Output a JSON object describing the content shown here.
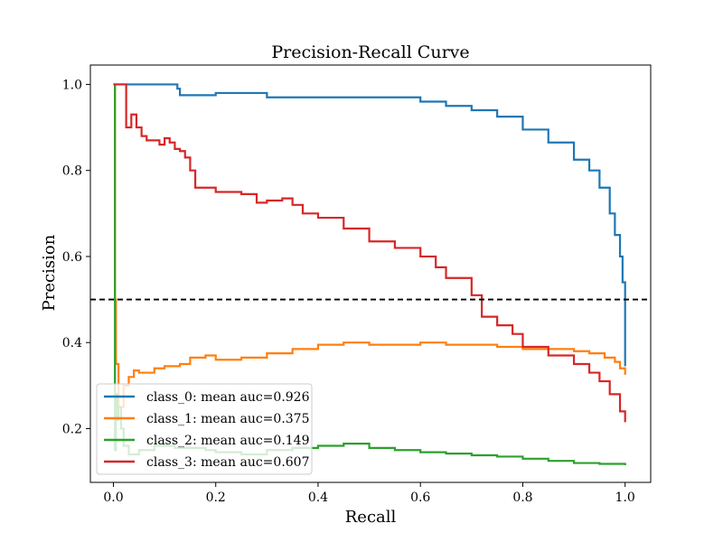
{
  "chart_data": {
    "type": "line",
    "title": "Precision-Recall Curve",
    "xlabel": "Recall",
    "ylabel": "Precision",
    "xlim": [
      -0.045,
      1.05
    ],
    "ylim": [
      0.075,
      1.045
    ],
    "x_ticks": [
      0.0,
      0.2,
      0.4,
      0.6,
      0.8,
      1.0
    ],
    "x_tick_labels": [
      "0.0",
      "0.2",
      "0.4",
      "0.6",
      "0.8",
      "1.0"
    ],
    "y_ticks": [
      0.2,
      0.4,
      0.6,
      0.8,
      1.0
    ],
    "y_tick_labels": [
      "0.2",
      "0.4",
      "0.6",
      "0.8",
      "1.0"
    ],
    "grid": false,
    "legend_position": "lower-left",
    "reference_line": {
      "y": 0.5,
      "style": "dashed",
      "color": "#000000"
    },
    "series": [
      {
        "name": "class_0: mean auc=0.926",
        "color": "#1f77b4",
        "x": [
          0.0,
          0.12,
          0.125,
          0.13,
          0.2,
          0.25,
          0.3,
          0.4,
          0.5,
          0.6,
          0.65,
          0.7,
          0.75,
          0.8,
          0.85,
          0.9,
          0.93,
          0.95,
          0.97,
          0.98,
          0.99,
          0.995,
          1.0,
          1.0
        ],
        "y": [
          1.0,
          1.0,
          0.99,
          0.975,
          0.98,
          0.98,
          0.97,
          0.97,
          0.97,
          0.96,
          0.95,
          0.94,
          0.925,
          0.895,
          0.865,
          0.825,
          0.8,
          0.76,
          0.7,
          0.65,
          0.6,
          0.54,
          0.5,
          0.345
        ]
      },
      {
        "name": "class_1: mean auc=0.375",
        "color": "#ff7f0e",
        "x": [
          0.0,
          0.003,
          0.005,
          0.01,
          0.02,
          0.03,
          0.04,
          0.05,
          0.08,
          0.1,
          0.13,
          0.15,
          0.18,
          0.2,
          0.25,
          0.3,
          0.35,
          0.4,
          0.45,
          0.5,
          0.55,
          0.6,
          0.65,
          0.7,
          0.75,
          0.8,
          0.85,
          0.9,
          0.93,
          0.96,
          0.98,
          0.99,
          1.0
        ],
        "y": [
          1.0,
          0.5,
          0.35,
          0.25,
          0.3,
          0.32,
          0.335,
          0.33,
          0.34,
          0.345,
          0.35,
          0.365,
          0.37,
          0.36,
          0.365,
          0.375,
          0.385,
          0.395,
          0.4,
          0.395,
          0.395,
          0.4,
          0.395,
          0.395,
          0.39,
          0.385,
          0.385,
          0.38,
          0.375,
          0.365,
          0.355,
          0.34,
          0.325
        ]
      },
      {
        "name": "class_2: mean auc=0.149",
        "color": "#2ca02c",
        "x": [
          0.0,
          0.003,
          0.005,
          0.008,
          0.01,
          0.015,
          0.02,
          0.03,
          0.05,
          0.08,
          0.12,
          0.18,
          0.2,
          0.25,
          0.3,
          0.35,
          0.4,
          0.45,
          0.5,
          0.55,
          0.6,
          0.65,
          0.7,
          0.75,
          0.8,
          0.85,
          0.9,
          0.95,
          1.0
        ],
        "y": [
          1.0,
          0.15,
          0.28,
          0.22,
          0.25,
          0.2,
          0.16,
          0.14,
          0.15,
          0.16,
          0.155,
          0.15,
          0.145,
          0.14,
          0.15,
          0.155,
          0.16,
          0.165,
          0.155,
          0.15,
          0.145,
          0.142,
          0.138,
          0.135,
          0.13,
          0.125,
          0.12,
          0.118,
          0.115
        ]
      },
      {
        "name": "class_3: mean auc=0.607",
        "color": "#d62728",
        "x": [
          0.0,
          0.02,
          0.025,
          0.035,
          0.045,
          0.055,
          0.065,
          0.08,
          0.09,
          0.1,
          0.11,
          0.12,
          0.13,
          0.14,
          0.15,
          0.16,
          0.2,
          0.25,
          0.28,
          0.3,
          0.33,
          0.35,
          0.37,
          0.4,
          0.45,
          0.5,
          0.55,
          0.6,
          0.63,
          0.65,
          0.7,
          0.72,
          0.75,
          0.78,
          0.8,
          0.85,
          0.9,
          0.93,
          0.95,
          0.97,
          0.99,
          1.0
        ],
        "y": [
          1.0,
          1.0,
          0.9,
          0.93,
          0.9,
          0.88,
          0.87,
          0.87,
          0.86,
          0.875,
          0.865,
          0.85,
          0.845,
          0.83,
          0.8,
          0.76,
          0.75,
          0.745,
          0.725,
          0.73,
          0.735,
          0.72,
          0.7,
          0.69,
          0.665,
          0.635,
          0.62,
          0.6,
          0.575,
          0.55,
          0.51,
          0.46,
          0.44,
          0.42,
          0.39,
          0.37,
          0.35,
          0.33,
          0.31,
          0.28,
          0.24,
          0.215
        ]
      }
    ]
  }
}
